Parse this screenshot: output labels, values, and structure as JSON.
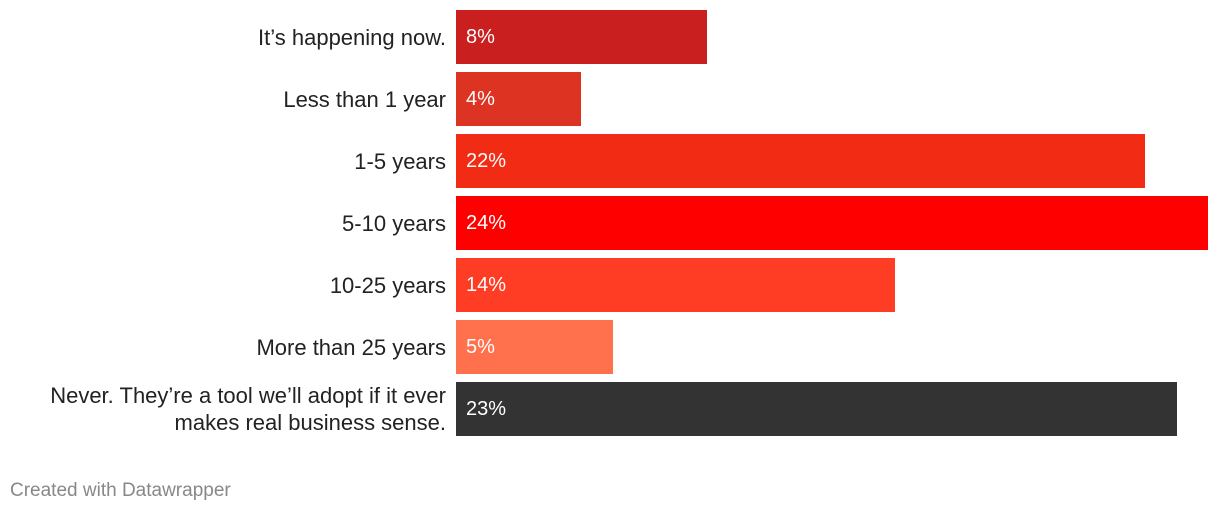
{
  "chart_data": {
    "type": "bar",
    "orientation": "horizontal",
    "categories": [
      "It’s happening now.",
      "Less than 1 year",
      "1-5 years",
      "5-10 years",
      "10-25 years",
      "More than 25 years",
      "Never. They’re a tool we’ll adopt if it ever\nmakes real business sense."
    ],
    "values": [
      8,
      4,
      22,
      24,
      14,
      5,
      23
    ],
    "value_labels": [
      "8%",
      "4%",
      "22%",
      "24%",
      "14%",
      "5%",
      "23%"
    ],
    "colors": [
      "#c91f1f",
      "#dd3322",
      "#f22b15",
      "#fe0000",
      "#ff3d24",
      "#ff704d",
      "#333333"
    ],
    "footer": "Created with Datawrapper"
  }
}
